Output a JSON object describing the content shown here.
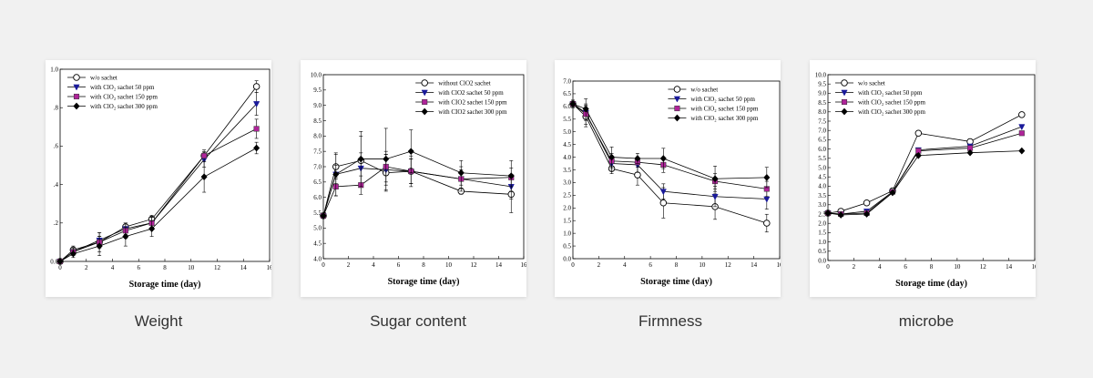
{
  "chart_data": [
    {
      "type": "line",
      "xlabel": "Storage time (day)",
      "caption": "Weight",
      "xlim": [
        0,
        16
      ],
      "ylim": [
        0,
        1.0
      ],
      "x_ticks": [
        0,
        2,
        4,
        6,
        8,
        10,
        12,
        14,
        16
      ],
      "y_ticks": [
        0.0,
        0.2,
        0.4,
        0.6,
        0.8,
        1.0
      ],
      "y_tick_labels": [
        "0.0",
        ".2",
        ".4",
        ".6",
        ".8",
        "1.0"
      ],
      "x": [
        0,
        1,
        3,
        5,
        7,
        11,
        15
      ],
      "legend_position": "top-left",
      "series": [
        {
          "name": "w/o sachet",
          "marker": "circle-open",
          "color": "#000000",
          "values": [
            0.0,
            0.06,
            0.1,
            0.18,
            0.22,
            0.55,
            0.91
          ],
          "errors": [
            0,
            0.02,
            0.03,
            0.02,
            0.02,
            0.02,
            0.03
          ]
        },
        {
          "name": "with ClO₂ sachet 50 ppm",
          "marker": "triangle-down",
          "color": "#1a1a9a",
          "values": [
            0.0,
            0.05,
            0.11,
            0.17,
            0.2,
            0.53,
            0.82
          ],
          "errors": [
            0,
            0.02,
            0.04,
            0.03,
            0.03,
            0.04,
            0.06
          ]
        },
        {
          "name": "with ClO₂ sachet 150 ppm",
          "marker": "square",
          "color": "#b0239a",
          "values": [
            0.0,
            0.05,
            0.1,
            0.16,
            0.2,
            0.55,
            0.69
          ],
          "errors": [
            0,
            0.02,
            0.05,
            0.04,
            0.03,
            0.03,
            0.05
          ]
        },
        {
          "name": "with ClO₂ sachet 300 ppm",
          "marker": "diamond",
          "color": "#000000",
          "values": [
            0.0,
            0.04,
            0.08,
            0.13,
            0.17,
            0.44,
            0.59
          ],
          "errors": [
            0,
            0.02,
            0.05,
            0.05,
            0.04,
            0.08,
            0.03
          ]
        }
      ]
    },
    {
      "type": "line",
      "xlabel": "Storage time (day)",
      "caption": "Sugar content",
      "xlim": [
        0,
        16
      ],
      "ylim": [
        4.0,
        10.0
      ],
      "x_ticks": [
        0,
        2,
        4,
        6,
        8,
        10,
        12,
        14,
        16
      ],
      "y_ticks": [
        4.0,
        4.5,
        5.0,
        5.5,
        6.0,
        6.5,
        7.0,
        7.5,
        8.0,
        8.5,
        9.0,
        9.5,
        10.0
      ],
      "y_tick_labels": [
        "4.0",
        "4.5",
        "5.0",
        "5.5",
        "6.0",
        "6.5",
        "7.0",
        "7.5",
        "8.0",
        "8.5",
        "9.0",
        "9.5",
        "10.0"
      ],
      "x": [
        0,
        1,
        3,
        5,
        7,
        11,
        15
      ],
      "legend_position": "top-right",
      "series": [
        {
          "name": "without ClO2 sachet",
          "marker": "circle-open",
          "color": "#000000",
          "values": [
            5.4,
            7.0,
            7.2,
            6.8,
            6.85,
            6.2,
            6.1
          ],
          "errors": [
            0,
            0.4,
            0.8,
            0.6,
            0.5,
            0.1,
            0.6
          ]
        },
        {
          "name": "with ClO2 sachet 50 ppm",
          "marker": "triangle-down",
          "color": "#1a1a9a",
          "values": [
            5.4,
            6.75,
            6.95,
            6.9,
            6.85,
            6.6,
            6.35
          ],
          "errors": [
            0,
            0.3,
            0.5,
            0.5,
            0.4,
            0.4,
            0.4
          ]
        },
        {
          "name": "with CIO2 sachet 150 ppm",
          "marker": "square",
          "color": "#b0239a",
          "values": [
            5.4,
            6.35,
            6.4,
            7.0,
            6.85,
            6.6,
            6.65
          ],
          "errors": [
            0,
            0.3,
            0.3,
            0.5,
            0.4,
            0.3,
            0.3
          ]
        },
        {
          "name": "with CIO2 sachet 300 ppm",
          "marker": "diamond",
          "color": "#000000",
          "values": [
            5.4,
            6.75,
            7.25,
            7.25,
            7.5,
            6.8,
            6.7
          ],
          "errors": [
            0,
            0.7,
            0.9,
            1.0,
            0.7,
            0.4,
            0.5
          ]
        }
      ]
    },
    {
      "type": "line",
      "xlabel": "Storage time (day)",
      "caption": "Firmness",
      "xlim": [
        0,
        16
      ],
      "ylim": [
        0.0,
        7.0
      ],
      "x_ticks": [
        0,
        2,
        4,
        6,
        8,
        10,
        12,
        14,
        16
      ],
      "y_ticks": [
        0.0,
        0.5,
        1.0,
        1.5,
        2.0,
        2.5,
        3.0,
        3.5,
        4.0,
        4.5,
        5.0,
        5.5,
        6.0,
        6.5,
        7.0
      ],
      "y_tick_labels": [
        "0.0",
        "0.5",
        "1.0",
        "1.5",
        "2.0",
        "2.5",
        "3.0",
        "3.5",
        "4.0",
        "4.5",
        "5.0",
        "5.5",
        "6.0",
        "6.5",
        "7.0"
      ],
      "x": [
        0,
        1,
        3,
        5,
        7,
        11,
        15
      ],
      "legend_position": "top-right",
      "series": [
        {
          "name": "w/o sachet",
          "marker": "circle-open",
          "color": "#000000",
          "values": [
            6.1,
            5.6,
            3.55,
            3.3,
            2.2,
            2.05,
            1.4
          ],
          "errors": [
            0.15,
            0.4,
            0.2,
            0.4,
            0.6,
            0.5,
            0.35
          ]
        },
        {
          "name": "with ClO₂ sachet 50 ppm",
          "marker": "triangle-down",
          "color": "#1a1a9a",
          "values": [
            6.1,
            5.75,
            3.75,
            3.7,
            2.65,
            2.45,
            2.35
          ],
          "errors": [
            0.1,
            0.3,
            0.3,
            0.3,
            0.3,
            0.4,
            0.4
          ]
        },
        {
          "name": "with ClO₂ sachet 150 ppm",
          "marker": "square",
          "color": "#b0239a",
          "values": [
            6.1,
            5.7,
            3.85,
            3.8,
            3.7,
            3.05,
            2.75
          ],
          "errors": [
            0.1,
            0.4,
            0.3,
            0.2,
            0.3,
            0.3,
            0.3
          ]
        },
        {
          "name": "with ClO₂ sachet 300 ppm",
          "marker": "diamond",
          "color": "#000000",
          "values": [
            6.1,
            5.9,
            4.0,
            3.95,
            3.95,
            3.15,
            3.2
          ],
          "errors": [
            0.1,
            0.4,
            0.4,
            0.2,
            0.4,
            0.5,
            0.4
          ]
        }
      ]
    },
    {
      "type": "line",
      "xlabel": "Storage time (day)",
      "caption": "microbe",
      "xlim": [
        0,
        16
      ],
      "ylim": [
        0.0,
        10.0
      ],
      "x_ticks": [
        0,
        2,
        4,
        6,
        8,
        10,
        12,
        14,
        16
      ],
      "y_ticks": [
        0.0,
        0.5,
        1.0,
        1.5,
        2.0,
        2.5,
        3.0,
        3.5,
        4.0,
        4.5,
        5.0,
        5.5,
        6.0,
        6.5,
        7.0,
        7.5,
        8.0,
        8.5,
        9.0,
        9.5,
        10.0
      ],
      "y_tick_labels": [
        "0.0",
        "0.5",
        "1.0",
        "1.5",
        "2.0",
        "2.5",
        "3.0",
        "3.5",
        "4.0",
        "4.5",
        "5.0",
        "5.5",
        "6.0",
        "6.5",
        "7.0",
        "7.5",
        "8.0",
        "8.5",
        "9.0",
        "9.5",
        "10.0"
      ],
      "x": [
        0,
        1,
        3,
        5,
        7,
        11,
        15
      ],
      "legend_position": "top-left",
      "series": [
        {
          "name": "w/o sachet",
          "marker": "circle-open",
          "color": "#000000",
          "values": [
            2.55,
            2.65,
            3.1,
            3.75,
            6.85,
            6.4,
            7.85
          ],
          "errors": []
        },
        {
          "name": "with ClO₂ sachet 50 ppm",
          "marker": "triangle-down",
          "color": "#1a1a9a",
          "values": [
            2.55,
            2.5,
            2.65,
            3.7,
            5.95,
            6.15,
            7.2
          ],
          "errors": []
        },
        {
          "name": "with ClO₂ sachet 150 ppm",
          "marker": "square",
          "color": "#b0239a",
          "values": [
            2.55,
            2.5,
            2.55,
            3.7,
            5.9,
            6.05,
            6.85
          ],
          "errors": []
        },
        {
          "name": "with ClO₂ sachet 300 ppm",
          "marker": "diamond",
          "color": "#000000",
          "values": [
            2.55,
            2.45,
            2.5,
            3.65,
            5.65,
            5.8,
            5.9
          ],
          "errors": []
        }
      ]
    }
  ]
}
